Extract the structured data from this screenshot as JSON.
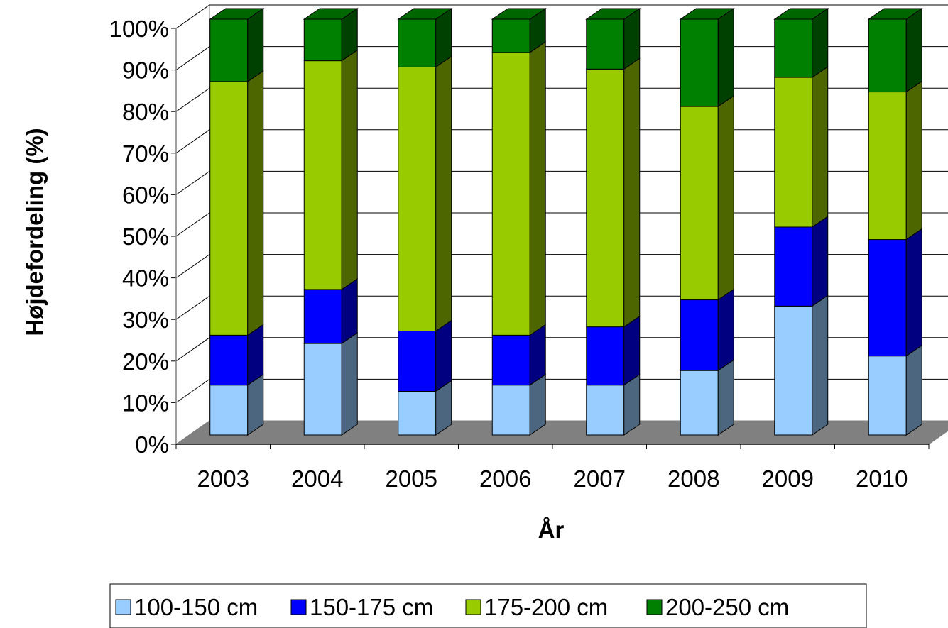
{
  "chart_data": {
    "type": "bar",
    "stacked": true,
    "percent_stacked": true,
    "three_d": true,
    "categories": [
      "2003",
      "2004",
      "2005",
      "2006",
      "2007",
      "2008",
      "2009",
      "2010"
    ],
    "series": [
      {
        "name": "100-150 cm",
        "color": "#99ccff",
        "values": [
          12,
          22,
          10.5,
          12,
          12,
          15.5,
          31,
          19
        ]
      },
      {
        "name": "150-175 cm",
        "color": "#0000ff",
        "values": [
          12,
          13,
          14.5,
          12,
          14,
          17,
          19,
          28
        ]
      },
      {
        "name": "175-200 cm",
        "color": "#99cc00",
        "values": [
          61,
          55,
          63.5,
          68,
          62,
          46.5,
          36,
          35.5
        ]
      },
      {
        "name": "200-250 cm",
        "color": "#008000",
        "values": [
          15,
          10,
          11.5,
          8,
          12,
          21,
          14,
          17.5
        ]
      }
    ],
    "xlabel": "År",
    "ylabel": "Højdefordeling (%)",
    "ylim": [
      0,
      100
    ],
    "yticks": [
      "0%",
      "10%",
      "20%",
      "30%",
      "40%",
      "50%",
      "60%",
      "70%",
      "80%",
      "90%",
      "100%"
    ],
    "grid": true,
    "legend_position": "bottom",
    "floor_color": "#808080"
  }
}
